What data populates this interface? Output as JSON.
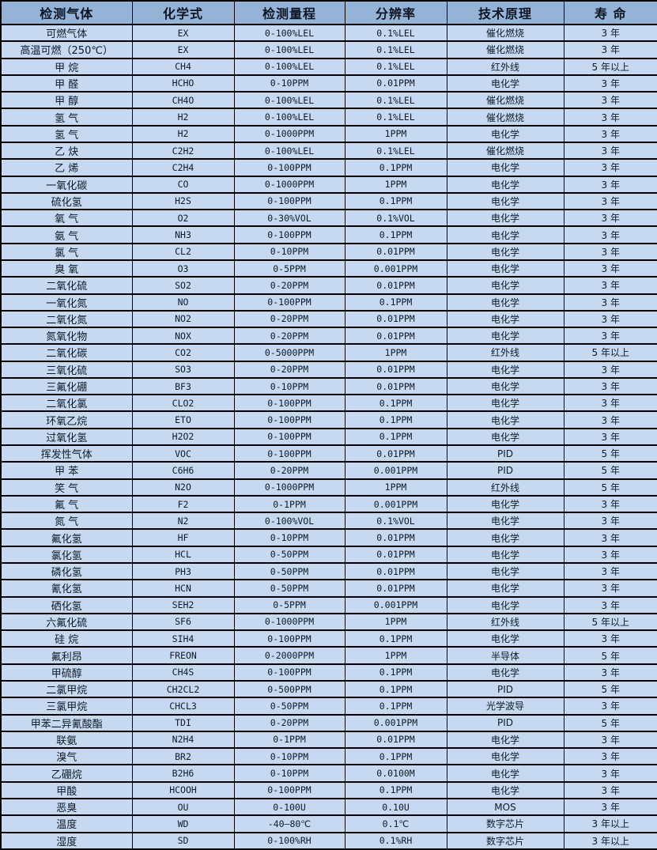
{
  "table": {
    "columns": [
      "检测气体",
      "化学式",
      "检测量程",
      "分辨率",
      "技术原理",
      "寿 命"
    ],
    "rows": [
      [
        "可燃气体",
        "EX",
        "0-100%LEL",
        "0.1%LEL",
        "催化燃烧",
        "3 年"
      ],
      [
        "高温可燃（250℃）",
        "EX",
        "0-100%LEL",
        "0.1%LEL",
        "催化燃烧",
        "3 年"
      ],
      [
        "甲 烷",
        "CH4",
        "0-100%LEL",
        "0.1%LEL",
        "红外线",
        "5 年以上"
      ],
      [
        "甲 醛",
        "HCHO",
        "0-10PPM",
        "0.01PPM",
        "电化学",
        "3 年"
      ],
      [
        "甲 醇",
        "CH4O",
        "0-100%LEL",
        "0.1%LEL",
        "催化燃烧",
        "3 年"
      ],
      [
        "氢 气",
        "H2",
        "0-100%LEL",
        "0.1%LEL",
        "催化燃烧",
        "3 年"
      ],
      [
        "氢 气",
        "H2",
        "0-1000PPM",
        "1PPM",
        "电化学",
        "3 年"
      ],
      [
        "乙 炔",
        "C2H2",
        "0-100%LEL",
        "0.1%LEL",
        "催化燃烧",
        "3 年"
      ],
      [
        "乙 烯",
        "C2H4",
        "0-100PPM",
        "0.1PPM",
        "电化学",
        "3 年"
      ],
      [
        "一氧化碳",
        "CO",
        "0-1000PPM",
        "1PPM",
        "电化学",
        "3 年"
      ],
      [
        "硫化氢",
        "H2S",
        "0-100PPM",
        "0.1PPM",
        "电化学",
        "3 年"
      ],
      [
        "氧 气",
        "O2",
        "0-30%VOL",
        "0.1%VOL",
        "电化学",
        "3 年"
      ],
      [
        "氨 气",
        "NH3",
        "0-100PPM",
        "0.1PPM",
        "电化学",
        "3 年"
      ],
      [
        "氯 气",
        "CL2",
        "0-10PPM",
        "0.01PPM",
        "电化学",
        "3 年"
      ],
      [
        "臭 氧",
        "O3",
        "0-5PPM",
        "0.001PPM",
        "电化学",
        "3 年"
      ],
      [
        "二氧化硫",
        "SO2",
        "0-20PPM",
        "0.01PPM",
        "电化学",
        "3 年"
      ],
      [
        "一氧化氮",
        "NO",
        "0-100PPM",
        "0.1PPM",
        "电化学",
        "3 年"
      ],
      [
        "二氧化氮",
        "NO2",
        "0-20PPM",
        "0.01PPM",
        "电化学",
        "3 年"
      ],
      [
        "氮氧化物",
        "NOX",
        "0-20PPM",
        "0.01PPM",
        "电化学",
        "3 年"
      ],
      [
        "二氧化碳",
        "CO2",
        "0-5000PPM",
        "1PPM",
        "红外线",
        "5 年以上"
      ],
      [
        "三氧化硫",
        "SO3",
        "0-20PPM",
        "0.01PPM",
        "电化学",
        "3 年"
      ],
      [
        "三氟化硼",
        "BF3",
        "0-10PPM",
        "0.01PPM",
        "电化学",
        "3 年"
      ],
      [
        "二氧化氯",
        "CLO2",
        "0-100PPM",
        "0.1PPM",
        "电化学",
        "3 年"
      ],
      [
        "环氧乙烷",
        "ETO",
        "0-100PPM",
        "0.1PPM",
        "电化学",
        "3 年"
      ],
      [
        "过氧化氢",
        "H2O2",
        "0-100PPM",
        "0.1PPM",
        "电化学",
        "3 年"
      ],
      [
        "挥发性气体",
        "VOC",
        "0-100PPM",
        "0.01PPM",
        "PID",
        "5 年"
      ],
      [
        "甲 苯",
        "C6H6",
        "0-20PPM",
        "0.001PPM",
        "PID",
        "5 年"
      ],
      [
        "笑 气",
        "N2O",
        "0-1000PPM",
        "1PPM",
        "红外线",
        "5 年"
      ],
      [
        "氟 气",
        "F2",
        "0-1PPM",
        "0.001PPM",
        "电化学",
        "3 年"
      ],
      [
        "氮 气",
        "N2",
        "0-100%VOL",
        "0.1%VOL",
        "电化学",
        "3 年"
      ],
      [
        "氟化氢",
        "HF",
        "0-10PPM",
        "0.01PPM",
        "电化学",
        "3 年"
      ],
      [
        "氯化氢",
        "HCL",
        "0-50PPM",
        "0.01PPM",
        "电化学",
        "3 年"
      ],
      [
        "磷化氢",
        "PH3",
        "0-50PPM",
        "0.01PPM",
        "电化学",
        "3 年"
      ],
      [
        "氰化氢",
        "HCN",
        "0-50PPM",
        "0.01PPM",
        "电化学",
        "3 年"
      ],
      [
        "硒化氢",
        "SEH2",
        "0-5PPM",
        "0.001PPM",
        "电化学",
        "3 年"
      ],
      [
        "六氟化硫",
        "SF6",
        "0-1000PPM",
        "1PPM",
        "红外线",
        "5 年以上"
      ],
      [
        "硅 烷",
        "SIH4",
        "0-100PPM",
        "0.1PPM",
        "电化学",
        "3 年"
      ],
      [
        "氟利昂",
        "FREON",
        "0-2000PPM",
        "1PPM",
        "半导体",
        "5 年"
      ],
      [
        "甲硫醇",
        "CH4S",
        "0-100PPM",
        "0.1PPM",
        "电化学",
        "3 年"
      ],
      [
        "二氯甲烷",
        "CH2CL2",
        "0-500PPM",
        "0.1PPM",
        "PID",
        "5 年"
      ],
      [
        "三氯甲烷",
        "CHCL3",
        "0-50PPM",
        "0.1PPM",
        "光学波导",
        "3 年"
      ],
      [
        "甲苯二异氰酸酯",
        "TDI",
        "0-20PPM",
        "0.001PPM",
        "PID",
        "5 年"
      ],
      [
        "联氨",
        "N2H4",
        "0-1PPM",
        "0.01PPM",
        "电化学",
        "3 年"
      ],
      [
        "溴气",
        "BR2",
        "0-10PPM",
        "0.1PPM",
        "电化学",
        "3 年"
      ],
      [
        "乙硼烷",
        "B2H6",
        "0-10PPM",
        "0.0100M",
        "电化学",
        "3 年"
      ],
      [
        "甲酸",
        "HCOOH",
        "0-100PPM",
        "0.1PPM",
        "电化学",
        "3 年"
      ],
      [
        "恶臭",
        "OU",
        "0-100U",
        "0.10U",
        "MOS",
        "3 年"
      ],
      [
        "温度",
        "WD",
        "-40—80℃",
        "0.1℃",
        "数字芯片",
        "3 年以上"
      ],
      [
        "湿度",
        "SD",
        "0-100%RH",
        "0.1%RH",
        "数字芯片",
        "3 年以上"
      ]
    ]
  },
  "colors": {
    "header_bg": "#95b3d7",
    "row_bg": "#c6d9f0",
    "grid_line": "#000000",
    "text": "#101a28"
  }
}
